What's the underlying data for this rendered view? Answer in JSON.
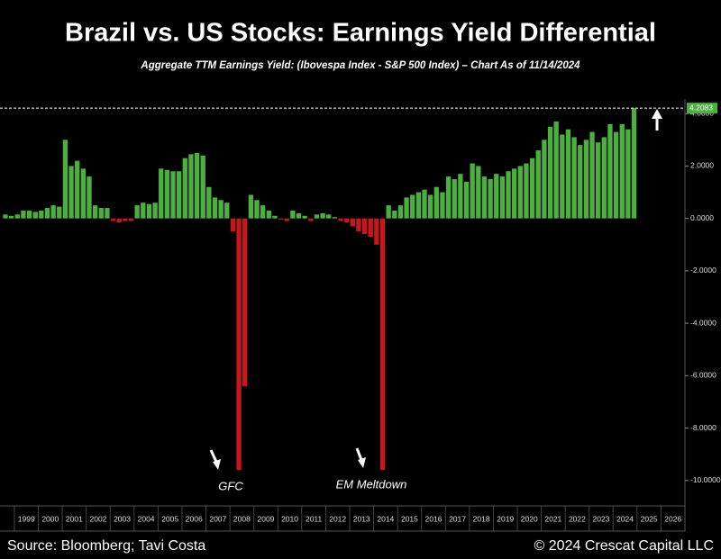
{
  "chart_data": {
    "type": "bar",
    "title": "Brazil vs. US Stocks: Earnings Yield Differential",
    "subtitle": "Aggregate TTM Earnings Yield: (Ibovespa Index - S&P 500 Index) – Chart As of 11/14/2024",
    "source": "Source: Bloomberg; Tavi Costa",
    "copyright": "© 2024 Crescat Capital LLC",
    "annotations": [
      "GFC",
      "EM Meltdown"
    ],
    "color": "#4caf3f",
    "negative_color": "#c8161d",
    "x": [
      1998.625,
      1998.875,
      1999.125,
      1999.375,
      1999.625,
      1999.875,
      2000.125,
      2000.375,
      2000.625,
      2000.875,
      2001.125,
      2001.375,
      2001.625,
      2001.875,
      2002.125,
      2002.375,
      2002.625,
      2002.875,
      2003.125,
      2003.375,
      2003.625,
      2003.875,
      2004.125,
      2004.375,
      2004.625,
      2004.875,
      2005.125,
      2005.375,
      2005.625,
      2005.875,
      2006.125,
      2006.375,
      2006.625,
      2006.875,
      2007.125,
      2007.375,
      2007.625,
      2007.875,
      2008.125,
      2008.375,
      2008.625,
      2008.875,
      2009.125,
      2009.375,
      2009.625,
      2009.875,
      2010.125,
      2010.375,
      2010.625,
      2010.875,
      2011.125,
      2011.375,
      2011.625,
      2011.875,
      2012.125,
      2012.375,
      2012.625,
      2012.875,
      2013.125,
      2013.375,
      2013.625,
      2013.875,
      2014.125,
      2014.375,
      2014.625,
      2014.875,
      2015.125,
      2015.375,
      2015.625,
      2015.875,
      2016.125,
      2016.375,
      2016.625,
      2016.875,
      2017.125,
      2017.375,
      2017.625,
      2017.875,
      2018.125,
      2018.375,
      2018.625,
      2018.875,
      2019.125,
      2019.375,
      2019.625,
      2019.875,
      2020.125,
      2020.375,
      2020.625,
      2020.875,
      2021.125,
      2021.375,
      2021.625,
      2021.875,
      2022.125,
      2022.375,
      2022.625,
      2022.875,
      2023.125,
      2023.375,
      2023.625,
      2023.875,
      2024.125,
      2024.375,
      2024.625,
      2024.875
    ],
    "values": [
      0.15,
      0.1,
      0.15,
      0.3,
      0.3,
      0.25,
      0.3,
      0.4,
      0.5,
      0.45,
      3.0,
      2.0,
      2.2,
      1.9,
      1.6,
      0.5,
      0.4,
      0.4,
      -0.1,
      -0.15,
      -0.1,
      -0.1,
      0.5,
      0.6,
      0.55,
      0.6,
      1.9,
      1.85,
      1.8,
      1.8,
      2.3,
      2.45,
      2.5,
      2.4,
      1.2,
      0.8,
      0.7,
      0.6,
      -0.5,
      -9.6,
      -6.4,
      0.9,
      0.7,
      0.5,
      0.3,
      0.1,
      -0.05,
      -0.1,
      0.3,
      0.2,
      0.1,
      -0.1,
      0.15,
      0.2,
      0.15,
      0.05,
      -0.1,
      -0.15,
      -0.3,
      -0.5,
      -0.6,
      -0.7,
      -1.0,
      -9.6,
      0.5,
      0.3,
      0.5,
      0.8,
      0.9,
      1.0,
      1.1,
      0.9,
      1.2,
      1.0,
      1.6,
      1.5,
      1.7,
      1.4,
      2.1,
      2.0,
      1.6,
      1.5,
      1.7,
      1.6,
      1.8,
      1.9,
      2.0,
      2.1,
      2.3,
      2.6,
      3.0,
      3.5,
      3.7,
      3.2,
      3.4,
      3.1,
      2.8,
      3.0,
      3.3,
      2.9,
      3.1,
      3.6,
      3.3,
      3.6,
      3.4,
      4.2083
    ],
    "xlim": [
      1998.4,
      2027.0
    ],
    "xticks": [
      1999,
      2000,
      2001,
      2002,
      2003,
      2004,
      2005,
      2006,
      2007,
      2008,
      2009,
      2010,
      2011,
      2012,
      2013,
      2014,
      2015,
      2016,
      2017,
      2018,
      2019,
      2020,
      2021,
      2022,
      2023,
      2024,
      2025,
      2026
    ],
    "ylim": [
      -10.9,
      4.9
    ],
    "yticks": [
      {
        "value": 4,
        "label": "4.0000"
      },
      {
        "value": 2,
        "label": "2.0000"
      },
      {
        "value": 0,
        "label": "0.0000"
      },
      {
        "value": -2,
        "label": "-2.0000"
      },
      {
        "value": -4,
        "label": "-4.0000"
      },
      {
        "value": -6,
        "label": "-6.0000"
      },
      {
        "value": -8,
        "label": "-8.0000"
      },
      {
        "value": -10,
        "label": "-10.0000"
      }
    ]
  }
}
